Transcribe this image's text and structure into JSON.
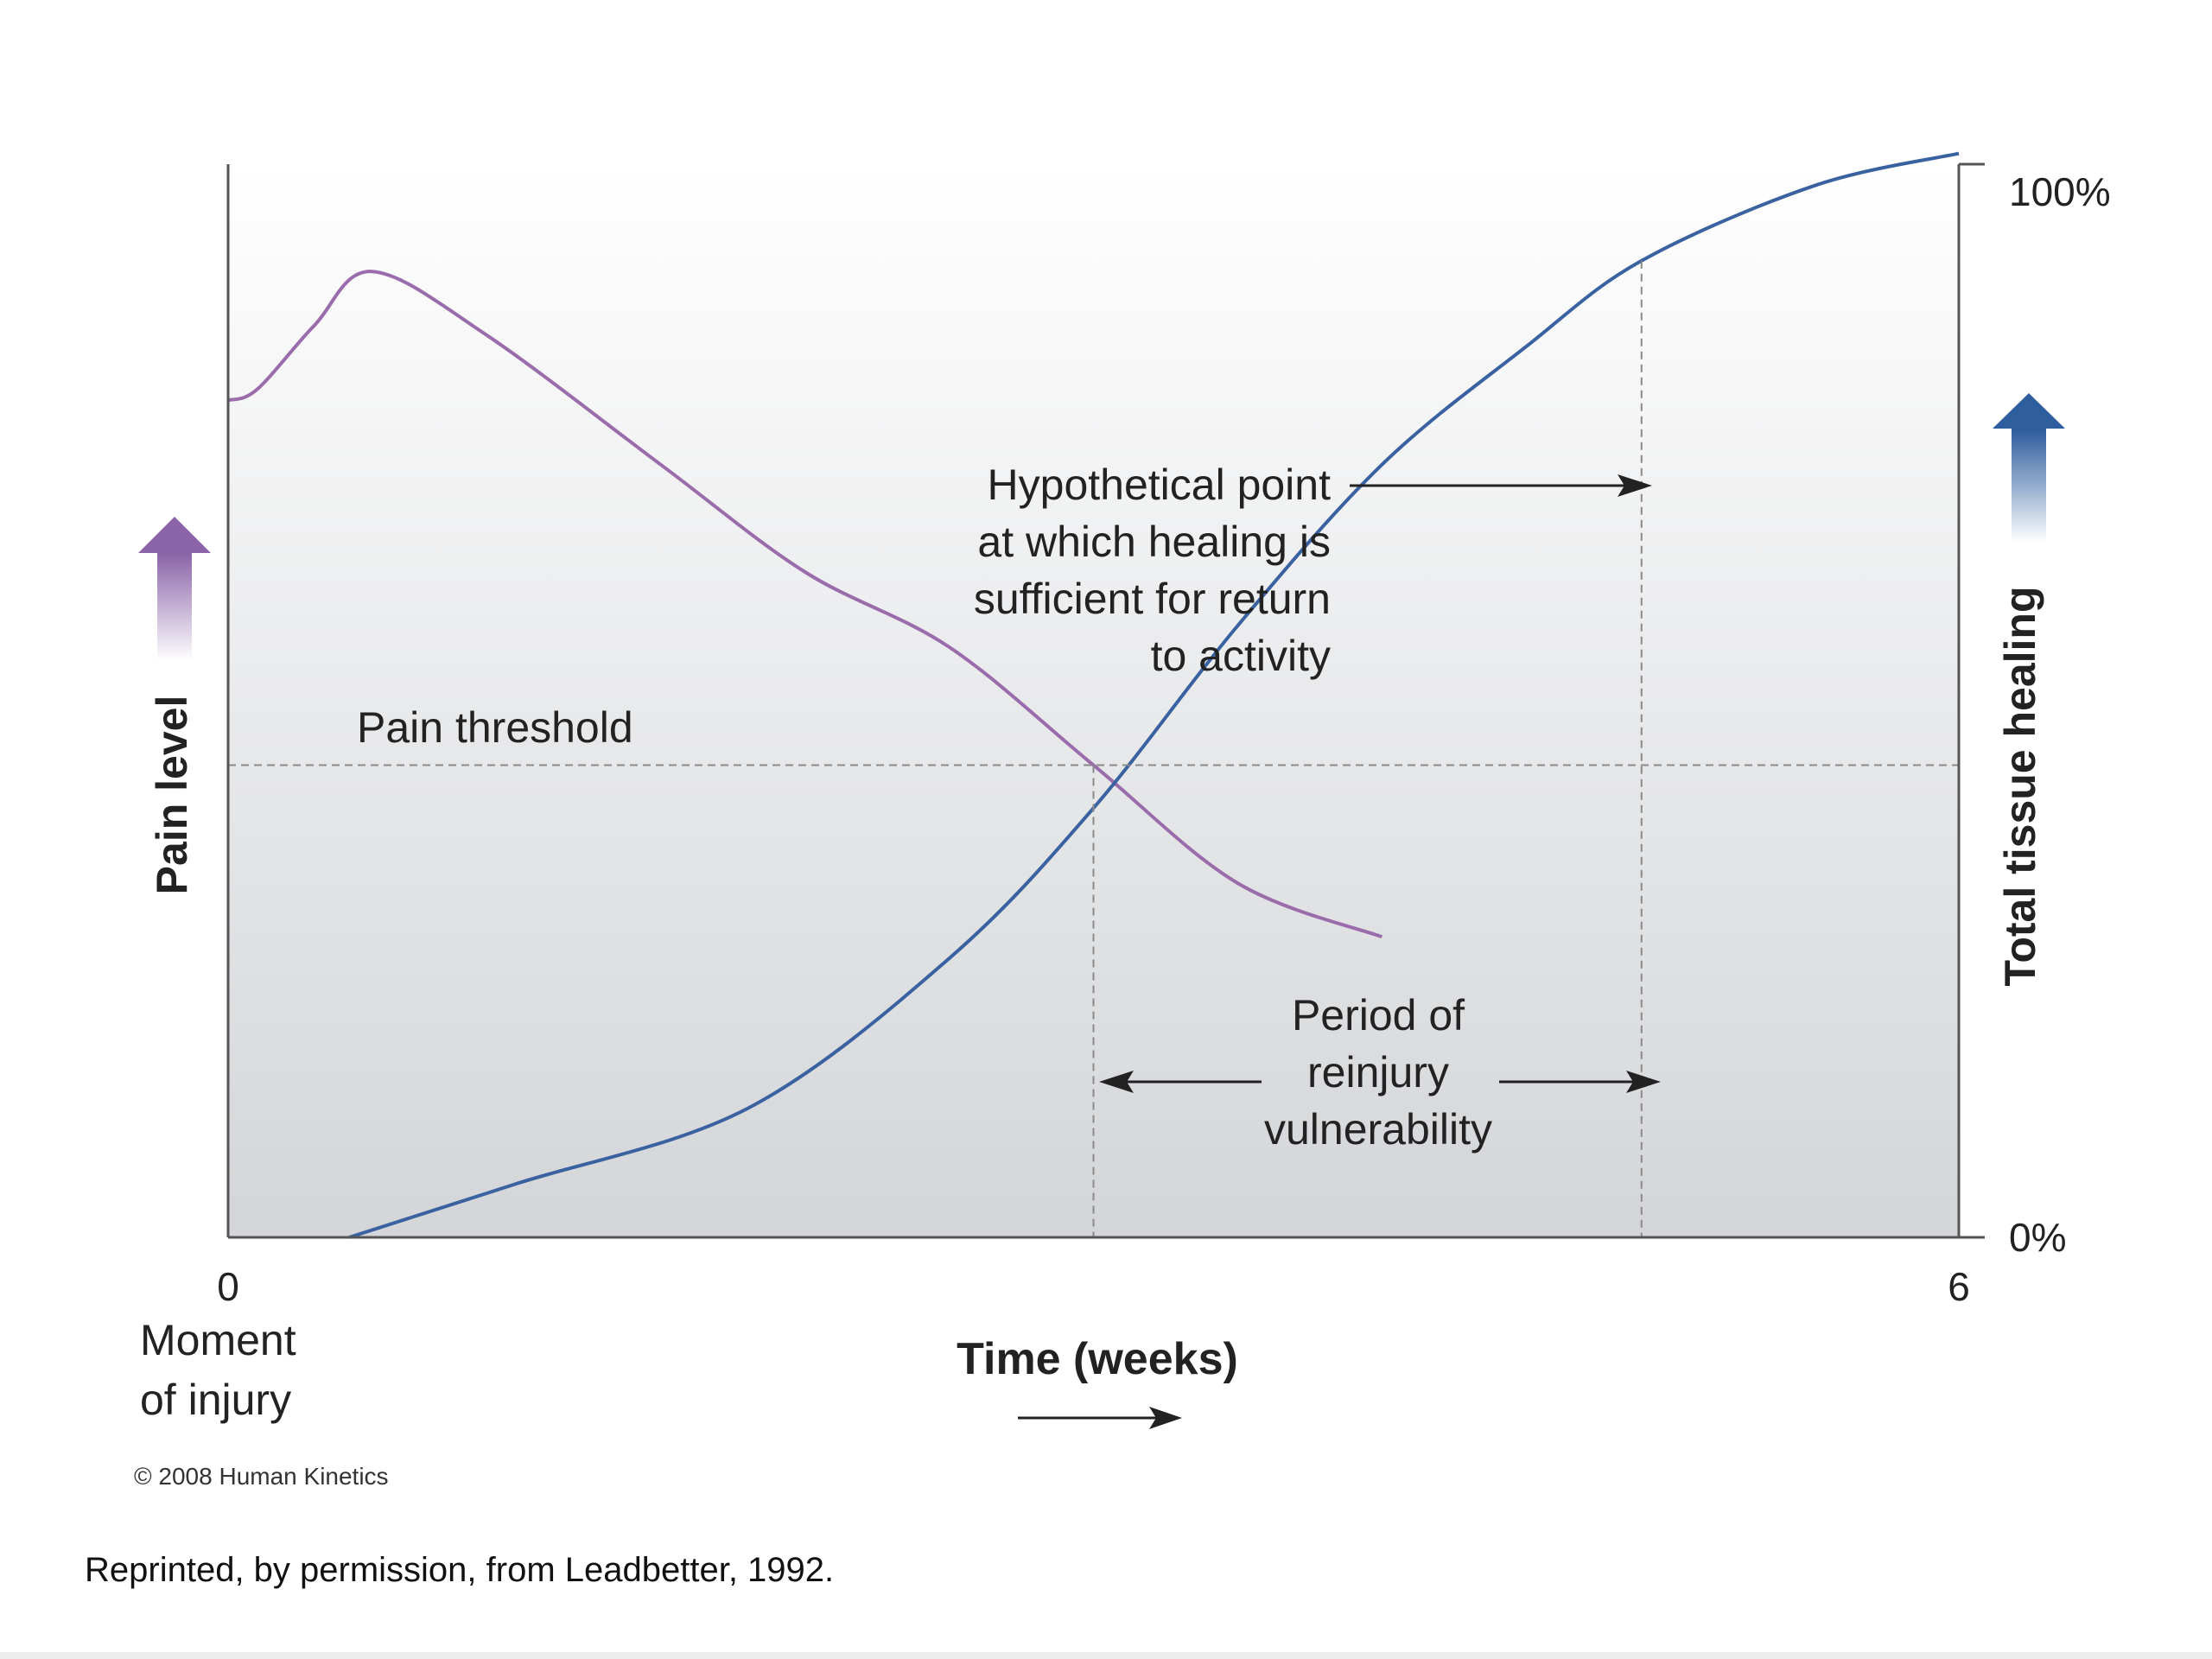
{
  "chart_data": {
    "type": "line",
    "xlabel": "Time (weeks)",
    "x_ticks": [
      {
        "value": 0,
        "label": "0"
      },
      {
        "value": 6,
        "label": "6"
      }
    ],
    "x_origin_note": [
      "Moment",
      "of injury"
    ],
    "xlim": [
      0,
      6
    ],
    "y_left_label": "Pain level",
    "y_right_label": "Total tissue healing",
    "y_right_ticks": [
      {
        "value": 0,
        "label": "0%"
      },
      {
        "value": 100,
        "label": "100%"
      }
    ],
    "y_right_lim": [
      0,
      100
    ],
    "series": [
      {
        "name": "",
        "axis": "left",
        "color": "#9a6cab",
        "x": [
          0.0,
          0.1,
          0.3,
          0.5,
          0.9,
          1.5,
          2.0,
          2.5,
          3.0,
          3.5,
          4.0
        ],
        "y": [
          78,
          79,
          85,
          90,
          84,
          72,
          62,
          55,
          44,
          33,
          28
        ]
      },
      {
        "name": "",
        "axis": "right",
        "color": "#3a62a0",
        "x": [
          0.42,
          1.0,
          1.8,
          2.5,
          3.0,
          3.5,
          4.0,
          4.5,
          4.9,
          5.5,
          6.0
        ],
        "y": [
          0,
          5,
          12,
          26,
          40,
          57,
          72,
          83,
          91,
          98,
          101
        ]
      }
    ],
    "pain_threshold": {
      "label": "Pain threshold",
      "value": 44
    },
    "return_to_activity_x": 4.9,
    "vulnerability_start_x": 3.0,
    "annotations": {
      "hypothetical_point": [
        "Hypothetical point",
        "at which healing is",
        "sufficient for return",
        "to activity"
      ],
      "reinjury_period": [
        "Period of",
        "reinjury",
        "vulnerability"
      ]
    },
    "grid": false,
    "legend": "none"
  },
  "copyright": "© 2008 Human Kinetics",
  "footer_note": "Reprinted, by permission, from Leadbetter, 1992.",
  "colors": {
    "pain_curve": "#9a6cab",
    "healing_curve": "#3a62a0",
    "pain_arrow": "#8a63a8",
    "healing_arrow": "#2f5e9e",
    "plot_bg_top": "#ffffff",
    "plot_bg_bottom": "#d3d5d8",
    "axis": "#555555"
  }
}
